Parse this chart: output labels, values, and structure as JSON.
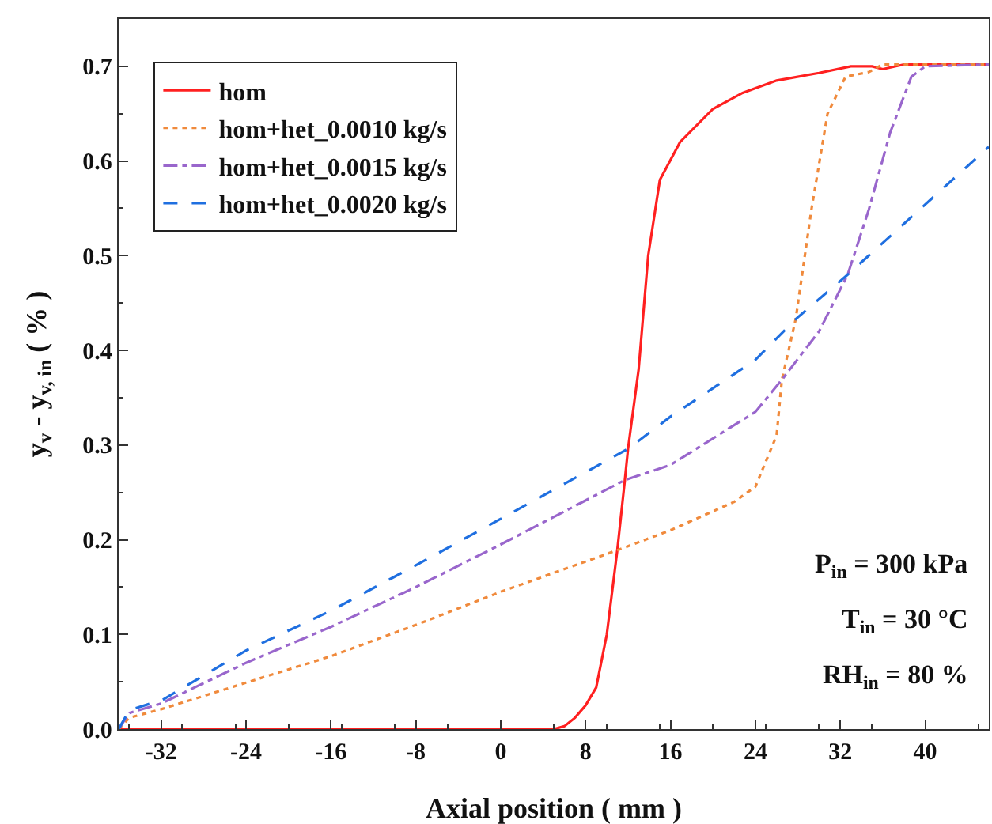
{
  "chart_data": {
    "type": "line",
    "xlabel": "Axial position ( mm )",
    "ylabel": "y$_{v}$ - y$_{v, in}$ ( % )",
    "xlim": [
      -36,
      46
    ],
    "xticks": [
      -32,
      -24,
      -16,
      -8,
      0,
      8,
      16,
      24,
      32,
      40
    ],
    "ylim": [
      0,
      0.75
    ],
    "yticks": [
      {
        "value": 0,
        "label": "0.0"
      },
      0.1,
      0.2,
      0.3,
      0.4,
      0.5,
      0.6,
      0.7
    ],
    "grid": false,
    "legend": "top left",
    "marker": "none",
    "annotations": [
      "P$_{in}$ = 300 kPa",
      "T$_{in}$ = 30 °C",
      "RH$_{in}$ = 80 %"
    ],
    "series": [
      {
        "name": "hom",
        "color": "#ff2020",
        "line_style": "solid",
        "x": [
          -36,
          5,
          6,
          7,
          8,
          9,
          10,
          11,
          11.7,
          12,
          13,
          13.9,
          15,
          16.9,
          20,
          22.8,
          26,
          30,
          33,
          35,
          36,
          38,
          46
        ],
        "values": [
          0,
          0,
          0.003,
          0.012,
          0.025,
          0.044,
          0.1,
          0.19,
          0.263,
          0.296,
          0.38,
          0.5,
          0.58,
          0.62,
          0.655,
          0.672,
          0.685,
          0.693,
          0.7,
          0.7,
          0.697,
          0.702,
          0.702
        ]
      },
      {
        "name": "hom+het_0.0010 kg/s",
        "color": "#f08a3c",
        "line_style": "dotted",
        "x": [
          -36,
          -35,
          -32,
          -24,
          -16,
          -8,
          0,
          11,
          16,
          22,
          24,
          26,
          26.5,
          27.8,
          29.3,
          30.8,
          32.5,
          34.7,
          36,
          46
        ],
        "values": [
          0,
          0.012,
          0.021,
          0.049,
          0.077,
          0.11,
          0.145,
          0.189,
          0.21,
          0.24,
          0.256,
          0.31,
          0.369,
          0.433,
          0.55,
          0.65,
          0.689,
          0.694,
          0.702,
          0.702
        ]
      },
      {
        "name": "hom+het_0.0015 kg/s",
        "color": "#9966cc",
        "line_style": "dashdot",
        "x": [
          -36,
          -35,
          -32,
          -24,
          -16,
          -8,
          0,
          11.7,
          16,
          24,
          26.5,
          30,
          32.7,
          34.7,
          36.7,
          38.7,
          40,
          46
        ],
        "values": [
          0,
          0.017,
          0.027,
          0.07,
          0.108,
          0.15,
          0.195,
          0.263,
          0.279,
          0.335,
          0.369,
          0.42,
          0.48,
          0.549,
          0.63,
          0.689,
          0.7,
          0.702
        ]
      },
      {
        "name": "hom+het_0.0020 kg/s",
        "color": "#1f6fe0",
        "line_style": "dashed",
        "x": [
          -36,
          -35,
          -33,
          -32,
          -24,
          -16,
          -8,
          0,
          12,
          16,
          24,
          27.8,
          32.7,
          40,
          46
        ],
        "values": [
          0,
          0.02,
          0.027,
          0.03,
          0.083,
          0.125,
          0.173,
          0.222,
          0.296,
          0.33,
          0.39,
          0.433,
          0.48,
          0.554,
          0.615
        ]
      }
    ]
  }
}
